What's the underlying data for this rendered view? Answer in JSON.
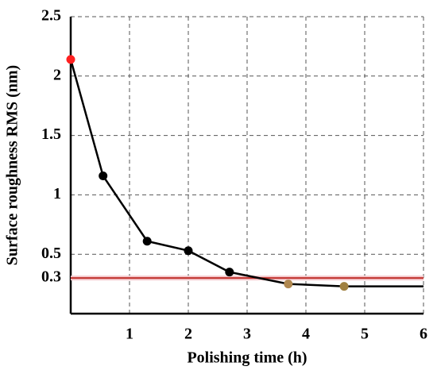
{
  "chart_data": {
    "type": "line",
    "xlabel": "Polishing time (h)",
    "ylabel": "Surface roughness RMS (nm)",
    "xlim": [
      0,
      6
    ],
    "ylim": [
      0,
      2.5
    ],
    "xticks": [
      1,
      2,
      3,
      4,
      5,
      6
    ],
    "yticks": [
      0.3,
      0.5,
      1,
      1.5,
      2,
      2.5
    ],
    "grid": true,
    "series": [
      {
        "color": "#000000",
        "x": [
          0,
          0.55,
          1.3,
          2.0,
          2.7,
          3.7,
          4.65,
          6
        ],
        "values": [
          2.14,
          1.16,
          0.61,
          0.53,
          0.35,
          0.25,
          0.23,
          0.23
        ],
        "marker_colors": [
          "#ff2020",
          "#000000",
          "#000000",
          "#000000",
          "#000000",
          "#b08850",
          "#a08040",
          null
        ]
      }
    ],
    "hlines": [
      {
        "value": 0.3,
        "color": "#c0302a"
      }
    ]
  }
}
